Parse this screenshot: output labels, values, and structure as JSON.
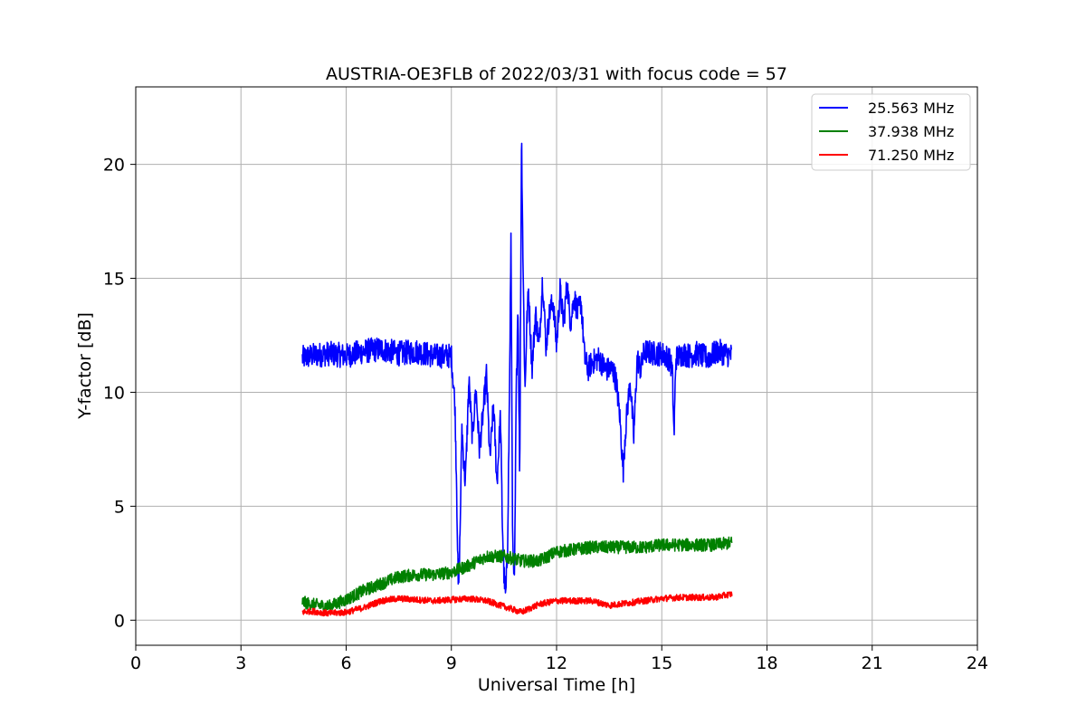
{
  "chart_data": {
    "type": "line",
    "title": "AUSTRIA-OE3FLB of 2022/03/31 with focus code = 57",
    "xlabel": "Universal Time [h]",
    "ylabel": "Y-factor [dB]",
    "xlim": [
      0,
      24
    ],
    "ylim": [
      -1.1,
      23.4
    ],
    "xticks": [
      0,
      3,
      6,
      9,
      12,
      15,
      18,
      21,
      24
    ],
    "yticks": [
      0,
      5,
      10,
      15,
      20
    ],
    "grid": true,
    "legend_position": "top-right",
    "series": [
      {
        "name": "25.563 MHz",
        "color": "#0000ff",
        "x": [
          4.75,
          5.0,
          5.5,
          6.0,
          6.5,
          7.0,
          7.5,
          8.0,
          8.5,
          9.0,
          9.1,
          9.15,
          9.2,
          9.25,
          9.3,
          9.35,
          9.4,
          9.5,
          9.6,
          9.7,
          9.8,
          9.9,
          10.0,
          10.1,
          10.2,
          10.3,
          10.4,
          10.45,
          10.5,
          10.55,
          10.6,
          10.65,
          10.7,
          10.75,
          10.8,
          10.85,
          10.9,
          10.95,
          11.0,
          11.05,
          11.1,
          11.15,
          11.2,
          11.3,
          11.4,
          11.5,
          11.6,
          11.7,
          11.8,
          11.9,
          12.0,
          12.1,
          12.2,
          12.3,
          12.4,
          12.5,
          12.6,
          12.7,
          12.8,
          12.9,
          13.0,
          13.2,
          13.4,
          13.6,
          13.7,
          13.8,
          13.9,
          13.95,
          14.0,
          14.1,
          14.2,
          14.3,
          14.4,
          14.5,
          14.8,
          15.0,
          15.2,
          15.3,
          15.35,
          15.4,
          15.6,
          15.8,
          16.0,
          16.3,
          16.6,
          17.0
        ],
        "y": [
          11.5,
          11.6,
          11.7,
          11.6,
          11.8,
          11.9,
          11.7,
          11.8,
          11.6,
          11.6,
          9.5,
          6.0,
          1.0,
          4.0,
          8.5,
          7.0,
          6.0,
          10.5,
          8.0,
          10.2,
          7.5,
          9.0,
          10.8,
          7.0,
          9.5,
          6.0,
          9.0,
          4.5,
          2.0,
          1.0,
          3.0,
          9.0,
          16.5,
          3.0,
          1.5,
          10.0,
          14.0,
          6.0,
          21.5,
          15.0,
          10.0,
          13.0,
          14.5,
          11.0,
          13.5,
          12.0,
          15.0,
          12.0,
          13.5,
          14.0,
          12.0,
          14.5,
          13.0,
          14.8,
          13.0,
          14.2,
          13.5,
          14.0,
          11.5,
          11.0,
          11.3,
          11.5,
          11.0,
          11.0,
          10.5,
          9.0,
          6.5,
          8.0,
          9.0,
          10.5,
          8.0,
          11.5,
          11.0,
          11.8,
          11.7,
          11.7,
          11.5,
          11.0,
          8.0,
          11.5,
          11.7,
          11.6,
          11.7,
          11.5,
          11.8,
          11.6
        ],
        "amp": 0.55
      },
      {
        "name": "37.938 MHz",
        "color": "#008000",
        "x": [
          4.75,
          5.0,
          5.5,
          6.0,
          6.5,
          7.0,
          7.5,
          8.0,
          8.5,
          9.0,
          9.5,
          10.0,
          10.5,
          11.0,
          11.5,
          12.0,
          12.5,
          13.0,
          13.5,
          14.0,
          14.5,
          15.0,
          15.5,
          16.0,
          16.5,
          17.0
        ],
        "y": [
          0.8,
          0.7,
          0.6,
          0.9,
          1.3,
          1.6,
          1.9,
          2.0,
          2.0,
          2.1,
          2.4,
          2.8,
          2.8,
          2.6,
          2.6,
          3.0,
          3.1,
          3.2,
          3.2,
          3.2,
          3.2,
          3.3,
          3.3,
          3.3,
          3.3,
          3.4
        ],
        "amp": 0.28
      },
      {
        "name": "71.250 MHz",
        "color": "#ff0000",
        "x": [
          4.75,
          5.0,
          5.5,
          6.0,
          6.5,
          7.0,
          7.5,
          8.0,
          8.5,
          9.0,
          9.5,
          10.0,
          10.5,
          11.0,
          11.5,
          12.0,
          12.5,
          13.0,
          13.5,
          14.0,
          14.5,
          15.0,
          15.5,
          16.0,
          16.5,
          17.0
        ],
        "y": [
          0.35,
          0.4,
          0.3,
          0.35,
          0.55,
          0.85,
          0.95,
          0.9,
          0.85,
          0.9,
          0.95,
          0.85,
          0.6,
          0.35,
          0.7,
          0.85,
          0.85,
          0.85,
          0.65,
          0.75,
          0.85,
          0.95,
          1.0,
          1.0,
          1.0,
          1.15
        ],
        "amp": 0.14
      }
    ]
  }
}
